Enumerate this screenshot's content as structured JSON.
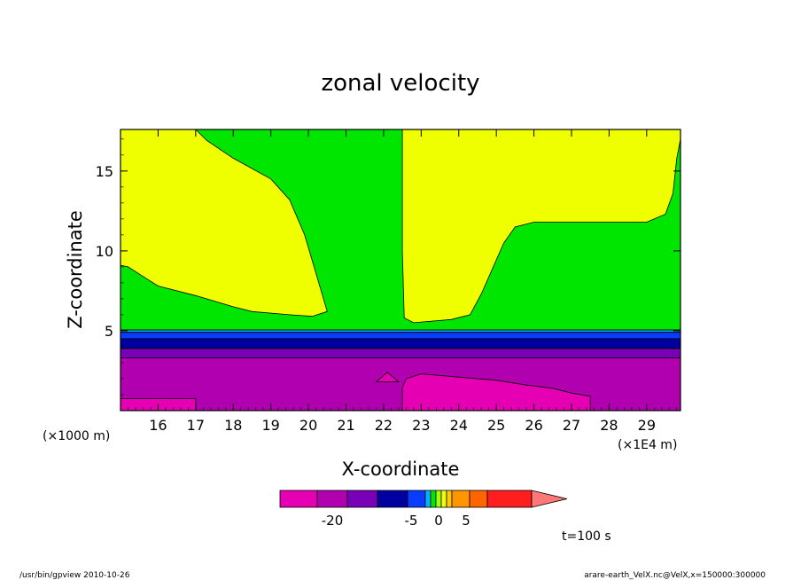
{
  "chart_data": {
    "type": "heatmap",
    "title": "zonal velocity",
    "xlabel": "X-coordinate",
    "ylabel": "Z-coordinate",
    "x_unit_label": "(×1E4 m)",
    "y_unit_label": "(×1000 m)",
    "xlim": [
      15.0,
      29.9
    ],
    "ylim": [
      0.0,
      17.6
    ],
    "x_ticks": [
      16,
      17,
      18,
      19,
      20,
      21,
      22,
      23,
      24,
      25,
      26,
      27,
      28,
      29
    ],
    "y_ticks": [
      5,
      10,
      15
    ],
    "regions": [
      {
        "name": "band-lower",
        "color": "#b000b0",
        "points": [
          [
            15.0,
            0.0
          ],
          [
            29.9,
            0.0
          ],
          [
            29.9,
            3.3
          ],
          [
            15.0,
            3.3
          ]
        ]
      },
      {
        "name": "band-purple",
        "color": "#7a00b8",
        "points": [
          [
            15.0,
            3.3
          ],
          [
            29.9,
            3.3
          ],
          [
            29.9,
            3.9
          ],
          [
            15.0,
            3.9
          ]
        ]
      },
      {
        "name": "band-darkblue",
        "color": "#0000a0",
        "points": [
          [
            15.0,
            3.9
          ],
          [
            29.9,
            3.9
          ],
          [
            29.9,
            4.5
          ],
          [
            15.0,
            4.5
          ]
        ]
      },
      {
        "name": "band-blue",
        "color": "#0a3cff",
        "points": [
          [
            15.0,
            4.5
          ],
          [
            29.9,
            4.5
          ],
          [
            29.9,
            4.9
          ],
          [
            15.0,
            4.9
          ]
        ]
      },
      {
        "name": "band-lightblue",
        "color": "#00b4ff",
        "points": [
          [
            15.0,
            4.9
          ],
          [
            29.9,
            4.9
          ],
          [
            29.9,
            5.05
          ],
          [
            15.0,
            5.05
          ]
        ]
      },
      {
        "name": "upper-green",
        "color": "#00e600",
        "points": [
          [
            15.0,
            5.05
          ],
          [
            29.9,
            5.05
          ],
          [
            29.9,
            17.6
          ],
          [
            15.0,
            17.6
          ]
        ]
      },
      {
        "name": "yellow-left",
        "color": "#f0ff00",
        "points": [
          [
            15.0,
            17.6
          ],
          [
            17.0,
            17.6
          ],
          [
            17.3,
            16.9
          ],
          [
            18.0,
            15.8
          ],
          [
            19.0,
            14.5
          ],
          [
            19.5,
            13.2
          ],
          [
            19.9,
            11.0
          ],
          [
            20.2,
            8.6
          ],
          [
            20.5,
            6.2
          ],
          [
            20.1,
            5.9
          ],
          [
            19.5,
            6.0
          ],
          [
            18.5,
            6.2
          ],
          [
            18.0,
            6.5
          ],
          [
            17.0,
            7.2
          ],
          [
            16.0,
            7.8
          ],
          [
            15.6,
            8.4
          ],
          [
            15.2,
            9.0
          ],
          [
            15.0,
            9.1
          ]
        ]
      },
      {
        "name": "yellow-right",
        "color": "#f0ff00",
        "points": [
          [
            22.5,
            17.6
          ],
          [
            29.9,
            17.6
          ],
          [
            29.9,
            17.0
          ],
          [
            29.8,
            15.8
          ],
          [
            29.7,
            13.6
          ],
          [
            29.5,
            12.3
          ],
          [
            29.0,
            11.8
          ],
          [
            26.0,
            11.8
          ],
          [
            25.5,
            11.5
          ],
          [
            25.2,
            10.5
          ],
          [
            24.9,
            8.9
          ],
          [
            24.6,
            7.3
          ],
          [
            24.3,
            6.0
          ],
          [
            23.8,
            5.7
          ],
          [
            22.8,
            5.5
          ],
          [
            22.55,
            5.8
          ],
          [
            22.5,
            10.0
          ]
        ]
      },
      {
        "name": "magenta-right",
        "color": "#e600b4",
        "points": [
          [
            22.5,
            0.0
          ],
          [
            27.5,
            0.0
          ],
          [
            27.5,
            0.9
          ],
          [
            27.0,
            1.1
          ],
          [
            26.5,
            1.4
          ],
          [
            25.8,
            1.6
          ],
          [
            25.0,
            1.9
          ],
          [
            24.0,
            2.1
          ],
          [
            23.0,
            2.3
          ],
          [
            22.6,
            2.0
          ],
          [
            22.5,
            1.4
          ]
        ]
      },
      {
        "name": "magenta-left",
        "color": "#e600b4",
        "points": [
          [
            15.0,
            0.0
          ],
          [
            17.0,
            0.0
          ],
          [
            17.0,
            0.75
          ],
          [
            15.0,
            0.75
          ]
        ]
      },
      {
        "name": "magenta-center",
        "color": "#e600b4",
        "points": [
          [
            21.8,
            1.8
          ],
          [
            22.4,
            1.8
          ],
          [
            22.1,
            2.4
          ]
        ]
      }
    ],
    "colorbar": {
      "colors": [
        "#e600b4",
        "#b000b0",
        "#7a00b8",
        "#0000a0",
        "#0a3cff",
        "#00b4ff",
        "#00e600",
        "#a0ff00",
        "#f0ff00",
        "#ffc800",
        "#ff9600",
        "#ff6400",
        "#ff1e1e"
      ],
      "extend_color": "#ff7878",
      "tick_labels": [
        "-20",
        "-5",
        "0",
        "5"
      ]
    },
    "time_label": "t=100 s"
  },
  "footer": {
    "left": "/usr/bin/gpview   2010-10-26",
    "right": "arare-earth_VelX.nc@VelX,x=150000:300000"
  }
}
